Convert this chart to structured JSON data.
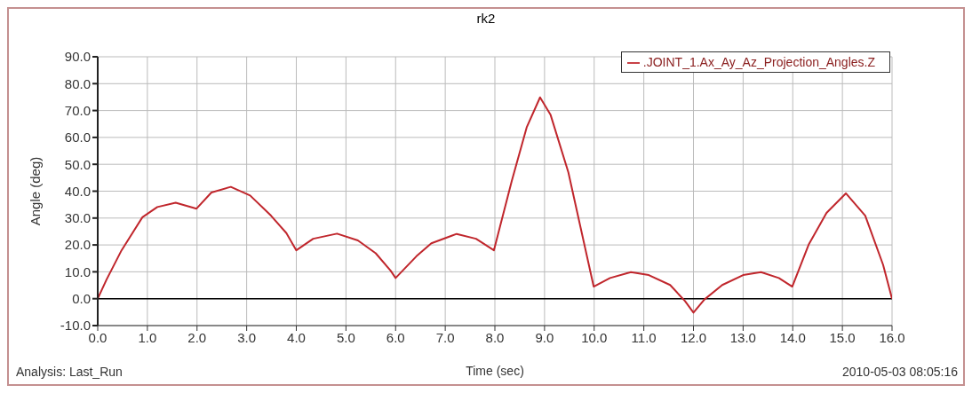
{
  "chart_data": {
    "type": "line",
    "title": "rk2",
    "xlabel": "Time (sec)",
    "ylabel": "Angle (deg)",
    "annotations": [
      "Analysis:  Last_Run",
      "2010-05-03 08:05:16"
    ],
    "x": [
      0,
      0.18,
      0.48,
      0.9,
      1.2,
      1.57,
      1.99,
      2.29,
      2.68,
      3.07,
      3.49,
      3.8,
      4.0,
      4.34,
      4.82,
      5.24,
      5.6,
      5.9,
      6.0,
      6.42,
      6.72,
      7.23,
      7.62,
      7.98,
      8.34,
      8.64,
      8.91,
      9.12,
      9.48,
      9.99,
      10.32,
      10.74,
      11.1,
      11.53,
      11.83,
      12.0,
      12.22,
      12.58,
      13.0,
      13.36,
      13.72,
      13.99,
      14.32,
      14.68,
      15.07,
      15.46,
      15.82,
      16.0
    ],
    "series": [
      {
        "name": ".JOINT_1.Ax_Ay_Az_Projection_Angles.Z",
        "color": "#c0262c",
        "values": [
          0,
          7.2,
          18,
          30.3,
          34.1,
          35.7,
          33.5,
          39.5,
          41.6,
          38.4,
          30.9,
          24.4,
          18,
          22.3,
          24.2,
          21.7,
          16.9,
          10.4,
          7.7,
          15.8,
          20.6,
          24.1,
          22.3,
          18,
          43.8,
          63.7,
          74.9,
          68.5,
          47,
          4.5,
          7.7,
          9.9,
          8.8,
          5.1,
          -0.9,
          -5.2,
          -0.3,
          5.1,
          8.8,
          9.9,
          7.7,
          4.5,
          20.1,
          31.9,
          39.2,
          30.9,
          12.6,
          0
        ]
      }
    ],
    "xlim": [
      0,
      16
    ],
    "xticks": [
      {
        "value": 0,
        "label": "0.0"
      },
      {
        "value": 1,
        "label": "1.0"
      },
      {
        "value": 2,
        "label": "2.0"
      },
      {
        "value": 3,
        "label": "3.0"
      },
      {
        "value": 4,
        "label": "4.0"
      },
      {
        "value": 5,
        "label": "5.0"
      },
      {
        "value": 6,
        "label": "6.0"
      },
      {
        "value": 7,
        "label": "7.0"
      },
      {
        "value": 8,
        "label": "8.0"
      },
      {
        "value": 9,
        "label": "9.0"
      },
      {
        "value": 10,
        "label": "10.0"
      },
      {
        "value": 11,
        "label": "11.0"
      },
      {
        "value": 12,
        "label": "12.0"
      },
      {
        "value": 13,
        "label": "13.0"
      },
      {
        "value": 14,
        "label": "14.0"
      },
      {
        "value": 15,
        "label": "15.0"
      },
      {
        "value": 16,
        "label": "16.0"
      }
    ],
    "ylim": [
      -10,
      90
    ],
    "yticks": [
      {
        "value": -10,
        "label": "-10.0"
      },
      {
        "value": 0,
        "label": "0.0"
      },
      {
        "value": 10,
        "label": "10.0"
      },
      {
        "value": 20,
        "label": "20.0"
      },
      {
        "value": 30,
        "label": "30.0"
      },
      {
        "value": 40,
        "label": "40.0"
      },
      {
        "value": 50,
        "label": "50.0"
      },
      {
        "value": 60,
        "label": "60.0"
      },
      {
        "value": 70,
        "label": "70.0"
      },
      {
        "value": 80,
        "label": "80.0"
      },
      {
        "value": 90,
        "label": "90.0"
      }
    ],
    "ref_lines": [
      {
        "axis": "y",
        "value": 0,
        "color": "#000000"
      }
    ],
    "grid": true,
    "legend": "top right",
    "marker": "none",
    "line_style": "solid"
  }
}
